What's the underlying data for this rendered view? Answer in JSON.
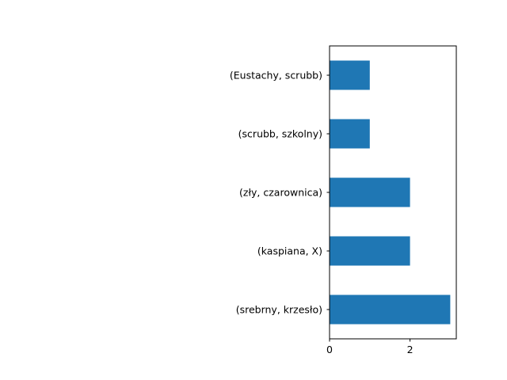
{
  "chart_data": {
    "type": "bar",
    "orientation": "horizontal",
    "categories": [
      "(srebrny, krzesło)",
      "(kaspiana, X)",
      "(zły, czarownica)",
      "(scrubb, szkolny)",
      "(Eustachy, scrubb)"
    ],
    "values": [
      3,
      2,
      2,
      1,
      1
    ],
    "bar_color": "#1f77b4",
    "xlim": [
      0,
      3.15
    ],
    "x_ticks": [
      0,
      2
    ],
    "title": "",
    "xlabel": "",
    "ylabel": "",
    "grid": false,
    "legend": false
  }
}
